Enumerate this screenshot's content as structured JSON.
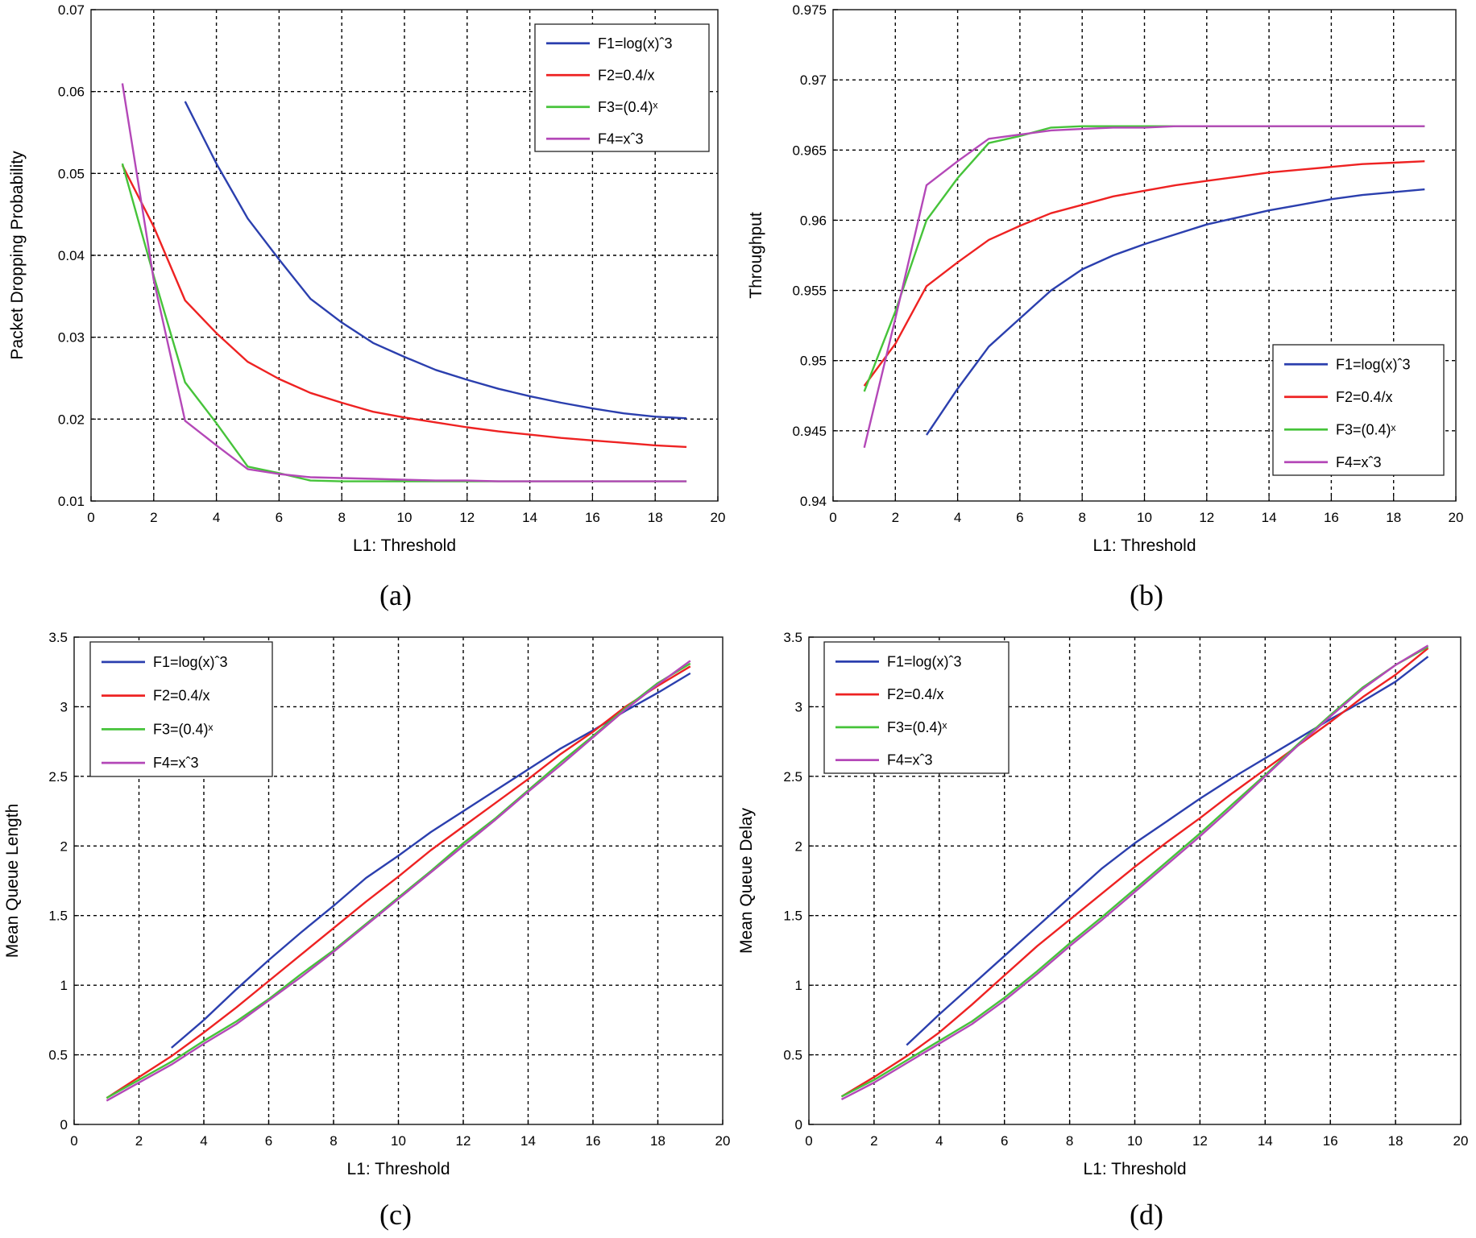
{
  "colors": {
    "F1": "#2b3fae",
    "F2": "#ee2222",
    "F3": "#46c33a",
    "F4": "#b448b8",
    "grid": "#000000"
  },
  "chart_data": [
    {
      "panel": "(a)",
      "type": "line",
      "xlabel": "L1: Threshold",
      "ylabel": "Packet Dropping Probability",
      "xlim": [
        0,
        20
      ],
      "ylim": [
        0.01,
        0.07
      ],
      "xticks": [
        "0",
        "2",
        "4",
        "6",
        "8",
        "10",
        "12",
        "14",
        "16",
        "18",
        "20"
      ],
      "yticks": [
        "0.01",
        "0.02",
        "0.03",
        "0.04",
        "0.05",
        "0.06",
        "0.07"
      ],
      "legend_position": "top-right",
      "series": [
        {
          "name": "F1=log(x)ˆ3",
          "key": "F1",
          "x": [
            3,
            4,
            5,
            6,
            7,
            8,
            9,
            10,
            11,
            12,
            13,
            14,
            15,
            16,
            17,
            18,
            19
          ],
          "y": [
            0.0588,
            0.0512,
            0.0445,
            0.0395,
            0.0347,
            0.0318,
            0.0293,
            0.0276,
            0.026,
            0.0248,
            0.0237,
            0.0228,
            0.022,
            0.0213,
            0.0207,
            0.0203,
            0.0201
          ]
        },
        {
          "name": "F2=0.4/x",
          "key": "F2",
          "x": [
            1,
            2,
            3,
            4,
            5,
            6,
            7,
            8,
            9,
            10,
            11,
            12,
            13,
            14,
            15,
            16,
            17,
            18,
            19
          ],
          "y": [
            0.051,
            0.0435,
            0.0345,
            0.0305,
            0.027,
            0.0249,
            0.0232,
            0.022,
            0.0209,
            0.0202,
            0.0196,
            0.019,
            0.0185,
            0.0181,
            0.0177,
            0.0174,
            0.0171,
            0.0168,
            0.0166
          ]
        },
        {
          "name": "F3=(0.4)ˣ",
          "key": "F3",
          "x": [
            1,
            2,
            3,
            4,
            5,
            6,
            7,
            8,
            9,
            10,
            11,
            12,
            13,
            14,
            15,
            16,
            17,
            18,
            19
          ],
          "y": [
            0.0512,
            0.0375,
            0.0245,
            0.0195,
            0.0142,
            0.0134,
            0.0125,
            0.0124,
            0.0124,
            0.0124,
            0.0124,
            0.0124,
            0.0124,
            0.0124,
            0.0124,
            0.0124,
            0.0124,
            0.0124,
            0.0124
          ]
        },
        {
          "name": "F4=xˆ3",
          "key": "F4",
          "x": [
            1,
            2,
            3,
            4,
            5,
            6,
            7,
            8,
            9,
            10,
            11,
            12,
            13,
            14,
            15,
            16,
            17,
            18,
            19
          ],
          "y": [
            0.061,
            0.037,
            0.0198,
            0.0168,
            0.0139,
            0.0133,
            0.0129,
            0.0128,
            0.0127,
            0.0126,
            0.0125,
            0.0125,
            0.0124,
            0.0124,
            0.0124,
            0.0124,
            0.0124,
            0.0124,
            0.0124
          ]
        }
      ]
    },
    {
      "panel": "(b)",
      "type": "line",
      "xlabel": "L1: Threshold",
      "ylabel": "Throughput",
      "xlim": [
        0,
        20
      ],
      "ylim": [
        0.94,
        0.975
      ],
      "xticks": [
        "0",
        "2",
        "4",
        "6",
        "8",
        "10",
        "12",
        "14",
        "16",
        "18",
        "20"
      ],
      "yticks": [
        "0.94",
        "0.945",
        "0.95",
        "0.955",
        "0.96",
        "0.965",
        "0.97",
        "0.975"
      ],
      "legend_position": "bottom-right",
      "series": [
        {
          "name": "F1=log(x)ˆ3",
          "key": "F1",
          "x": [
            3,
            4,
            5,
            6,
            7,
            8,
            9,
            10,
            11,
            12,
            13,
            14,
            15,
            16,
            17,
            18,
            19
          ],
          "y": [
            0.9447,
            0.948,
            0.951,
            0.953,
            0.955,
            0.9565,
            0.9575,
            0.9583,
            0.959,
            0.9597,
            0.9602,
            0.9607,
            0.9611,
            0.9615,
            0.9618,
            0.962,
            0.9622
          ]
        },
        {
          "name": "F2=0.4/x",
          "key": "F2",
          "x": [
            1,
            2,
            3,
            4,
            5,
            6,
            7,
            8,
            9,
            10,
            11,
            12,
            13,
            14,
            15,
            16,
            17,
            18,
            19
          ],
          "y": [
            0.9482,
            0.9512,
            0.9553,
            0.957,
            0.9586,
            0.9596,
            0.9605,
            0.9611,
            0.9617,
            0.9621,
            0.9625,
            0.9628,
            0.9631,
            0.9634,
            0.9636,
            0.9638,
            0.964,
            0.9641,
            0.9642
          ]
        },
        {
          "name": "F3=(0.4)ˣ",
          "key": "F3",
          "x": [
            1,
            2,
            3,
            4,
            5,
            6,
            7,
            8,
            9,
            10,
            11,
            12,
            13,
            14,
            15,
            16,
            17,
            18,
            19
          ],
          "y": [
            0.9478,
            0.9535,
            0.96,
            0.963,
            0.9655,
            0.966,
            0.9666,
            0.9667,
            0.9667,
            0.9667,
            0.9667,
            0.9667,
            0.9667,
            0.9667,
            0.9667,
            0.9667,
            0.9667,
            0.9667,
            0.9667
          ]
        },
        {
          "name": "F4=xˆ3",
          "key": "F4",
          "x": [
            1,
            2,
            3,
            4,
            5,
            6,
            7,
            8,
            9,
            10,
            11,
            12,
            13,
            14,
            15,
            16,
            17,
            18,
            19
          ],
          "y": [
            0.9438,
            0.953,
            0.9625,
            0.9642,
            0.9658,
            0.9661,
            0.9664,
            0.9665,
            0.9666,
            0.9666,
            0.9667,
            0.9667,
            0.9667,
            0.9667,
            0.9667,
            0.9667,
            0.9667,
            0.9667,
            0.9667
          ]
        }
      ]
    },
    {
      "panel": "(c)",
      "type": "line",
      "xlabel": "L1: Threshold",
      "ylabel": "Mean Queue Length",
      "xlim": [
        0,
        20
      ],
      "ylim": [
        0,
        3.5
      ],
      "xticks": [
        "0",
        "2",
        "4",
        "6",
        "8",
        "10",
        "12",
        "14",
        "16",
        "18",
        "20"
      ],
      "yticks": [
        "0",
        "0.5",
        "1",
        "1.5",
        "2",
        "2.5",
        "3",
        "3.5"
      ],
      "legend_position": "top-left",
      "series": [
        {
          "name": "F1=log(x)ˆ3",
          "key": "F1",
          "x": [
            3,
            4,
            5,
            6,
            7,
            8,
            9,
            10,
            11,
            12,
            13,
            14,
            15,
            16,
            17,
            18,
            19
          ],
          "y": [
            0.55,
            0.75,
            0.97,
            1.18,
            1.38,
            1.57,
            1.77,
            1.93,
            2.1,
            2.25,
            2.4,
            2.55,
            2.7,
            2.83,
            2.97,
            3.1,
            3.24
          ]
        },
        {
          "name": "F2=0.4/x",
          "key": "F2",
          "x": [
            1,
            2,
            3,
            4,
            5,
            6,
            7,
            8,
            9,
            10,
            11,
            12,
            13,
            14,
            15,
            16,
            17,
            18,
            19
          ],
          "y": [
            0.19,
            0.34,
            0.49,
            0.66,
            0.84,
            1.03,
            1.22,
            1.41,
            1.6,
            1.78,
            1.97,
            2.14,
            2.31,
            2.48,
            2.66,
            2.82,
            3.0,
            3.15,
            3.29
          ]
        },
        {
          "name": "F3=(0.4)ˣ",
          "key": "F3",
          "x": [
            1,
            2,
            3,
            4,
            5,
            6,
            7,
            8,
            9,
            10,
            11,
            12,
            13,
            14,
            15,
            16,
            17,
            18,
            19
          ],
          "y": [
            0.19,
            0.32,
            0.45,
            0.6,
            0.74,
            0.9,
            1.08,
            1.25,
            1.44,
            1.63,
            1.82,
            2.02,
            2.2,
            2.4,
            2.6,
            2.79,
            2.99,
            3.17,
            3.31
          ]
        },
        {
          "name": "F4=xˆ3",
          "key": "F4",
          "x": [
            1,
            2,
            3,
            4,
            5,
            6,
            7,
            8,
            9,
            10,
            11,
            12,
            13,
            14,
            15,
            16,
            17,
            18,
            19
          ],
          "y": [
            0.17,
            0.3,
            0.43,
            0.58,
            0.72,
            0.89,
            1.06,
            1.24,
            1.43,
            1.62,
            1.81,
            2.0,
            2.19,
            2.39,
            2.58,
            2.78,
            2.98,
            3.16,
            3.33
          ]
        }
      ]
    },
    {
      "panel": "(d)",
      "type": "line",
      "xlabel": "L1: Threshold",
      "ylabel": "Mean Queue Delay",
      "xlim": [
        0,
        20
      ],
      "ylim": [
        0,
        3.5
      ],
      "xticks": [
        "0",
        "2",
        "4",
        "6",
        "8",
        "10",
        "12",
        "14",
        "16",
        "18",
        "20"
      ],
      "yticks": [
        "0",
        "0.5",
        "1",
        "1.5",
        "2",
        "2.5",
        "3",
        "3.5"
      ],
      "legend_position": "top-left",
      "series": [
        {
          "name": "F1=log(x)ˆ3",
          "key": "F1",
          "x": [
            3,
            4,
            5,
            6,
            7,
            8,
            9,
            10,
            11,
            12,
            13,
            14,
            15,
            16,
            17,
            18,
            19
          ],
          "y": [
            0.57,
            0.79,
            1.0,
            1.21,
            1.42,
            1.63,
            1.84,
            2.02,
            2.18,
            2.34,
            2.49,
            2.63,
            2.77,
            2.91,
            3.04,
            3.18,
            3.36
          ]
        },
        {
          "name": "F2=0.4/x",
          "key": "F2",
          "x": [
            1,
            2,
            3,
            4,
            5,
            6,
            7,
            8,
            9,
            10,
            11,
            12,
            13,
            14,
            15,
            16,
            17,
            18,
            19
          ],
          "y": [
            0.2,
            0.34,
            0.49,
            0.66,
            0.86,
            1.07,
            1.28,
            1.47,
            1.66,
            1.85,
            2.03,
            2.2,
            2.38,
            2.55,
            2.72,
            2.89,
            3.07,
            3.23,
            3.42
          ]
        },
        {
          "name": "F3=(0.4)ˣ",
          "key": "F3",
          "x": [
            1,
            2,
            3,
            4,
            5,
            6,
            7,
            8,
            9,
            10,
            11,
            12,
            13,
            14,
            15,
            16,
            17,
            18,
            19
          ],
          "y": [
            0.2,
            0.32,
            0.46,
            0.6,
            0.74,
            0.91,
            1.1,
            1.3,
            1.49,
            1.69,
            1.89,
            2.09,
            2.3,
            2.51,
            2.73,
            2.94,
            3.14,
            3.3,
            3.43
          ]
        },
        {
          "name": "F4=xˆ3",
          "key": "F4",
          "x": [
            1,
            2,
            3,
            4,
            5,
            6,
            7,
            8,
            9,
            10,
            11,
            12,
            13,
            14,
            15,
            16,
            17,
            18,
            19
          ],
          "y": [
            0.18,
            0.3,
            0.44,
            0.58,
            0.72,
            0.89,
            1.08,
            1.28,
            1.47,
            1.67,
            1.87,
            2.07,
            2.28,
            2.5,
            2.72,
            2.93,
            3.13,
            3.3,
            3.44
          ]
        }
      ]
    }
  ]
}
